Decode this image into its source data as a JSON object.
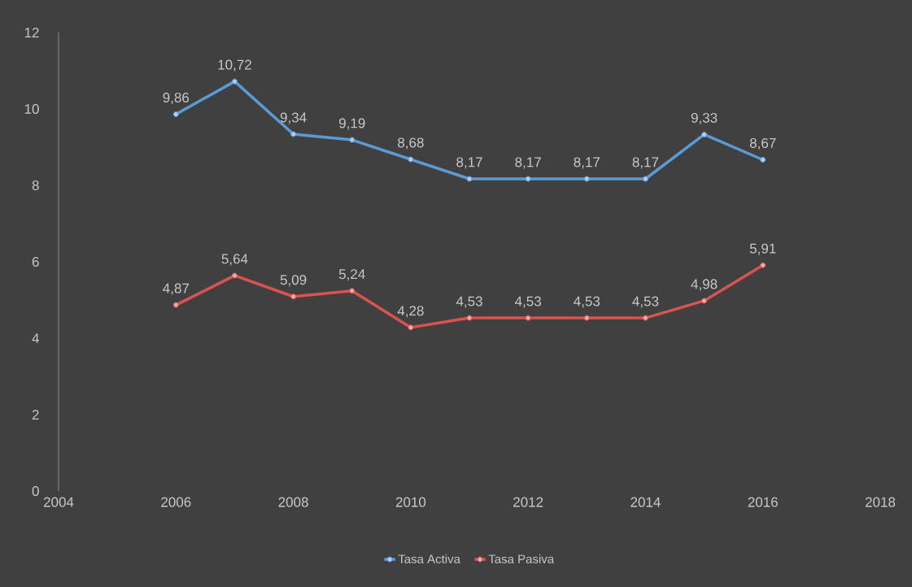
{
  "chart_data": {
    "type": "line",
    "x": [
      2006,
      2007,
      2008,
      2009,
      2010,
      2011,
      2012,
      2013,
      2014,
      2015,
      2016
    ],
    "series": [
      {
        "name": "Tasa Activa",
        "color": "#5b9bd5",
        "values": [
          9.86,
          10.72,
          9.34,
          9.19,
          8.68,
          8.17,
          8.17,
          8.17,
          8.17,
          9.33,
          8.67
        ],
        "value_labels": [
          "9,86",
          "10,72",
          "9,34",
          "9,19",
          "8,68",
          "8,17",
          "8,17",
          "8,17",
          "8,17",
          "9,33",
          "8,67"
        ]
      },
      {
        "name": "Tasa Pasiva",
        "color": "#d9534f",
        "values": [
          4.87,
          5.64,
          5.09,
          5.24,
          4.28,
          4.53,
          4.53,
          4.53,
          4.53,
          4.98,
          5.91
        ],
        "value_labels": [
          "4,87",
          "5,64",
          "5,09",
          "5,24",
          "4,28",
          "4,53",
          "4,53",
          "4,53",
          "4,53",
          "4,98",
          "5,91"
        ]
      }
    ],
    "xlim": [
      2004,
      2018
    ],
    "xticks": [
      2004,
      2006,
      2008,
      2010,
      2012,
      2014,
      2016,
      2018
    ],
    "ylim": [
      0,
      12
    ],
    "yticks": [
      0,
      2,
      4,
      6,
      8,
      10,
      12
    ],
    "grid": false,
    "legend": "bottom",
    "marker": "circle",
    "line_style": "solid"
  }
}
